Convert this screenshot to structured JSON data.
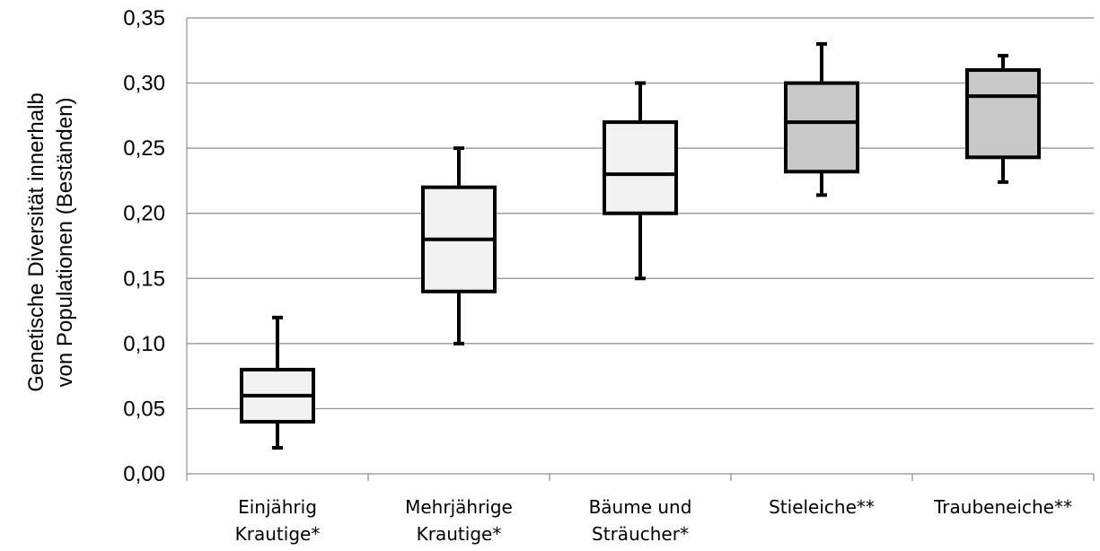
{
  "chart_data": {
    "type": "boxplot",
    "ylabel_lines": [
      "Genetische Diversität innerhalb",
      "von Populationen (Beständen)"
    ],
    "xlabel": "",
    "ylim": [
      0,
      0.35
    ],
    "yticks": [
      "0,00",
      "0,05",
      "0,10",
      "0,15",
      "0,20",
      "0,25",
      "0,30",
      "0,35"
    ],
    "grid": true,
    "categories": [
      {
        "label_lines": [
          "Einjährig",
          "Krautige*"
        ],
        "min": 0.02,
        "q1": 0.04,
        "median": 0.06,
        "q3": 0.08,
        "max": 0.12,
        "fill": "#f2f2f2"
      },
      {
        "label_lines": [
          "Mehrjährige",
          "Krautige*"
        ],
        "min": 0.1,
        "q1": 0.14,
        "median": 0.18,
        "q3": 0.22,
        "max": 0.25,
        "fill": "#f2f2f2"
      },
      {
        "label_lines": [
          "Bäume und",
          "Sträucher*"
        ],
        "min": 0.15,
        "q1": 0.2,
        "median": 0.23,
        "q3": 0.27,
        "max": 0.3,
        "fill": "#f2f2f2"
      },
      {
        "label_lines": [
          "Stieleiche**"
        ],
        "min": 0.214,
        "q1": 0.232,
        "median": 0.27,
        "q3": 0.3,
        "max": 0.33,
        "fill": "#c8c8c8"
      },
      {
        "label_lines": [
          "Traubeneiche**"
        ],
        "min": 0.224,
        "q1": 0.243,
        "median": 0.29,
        "q3": 0.31,
        "max": 0.321,
        "fill": "#c8c8c8"
      }
    ]
  }
}
